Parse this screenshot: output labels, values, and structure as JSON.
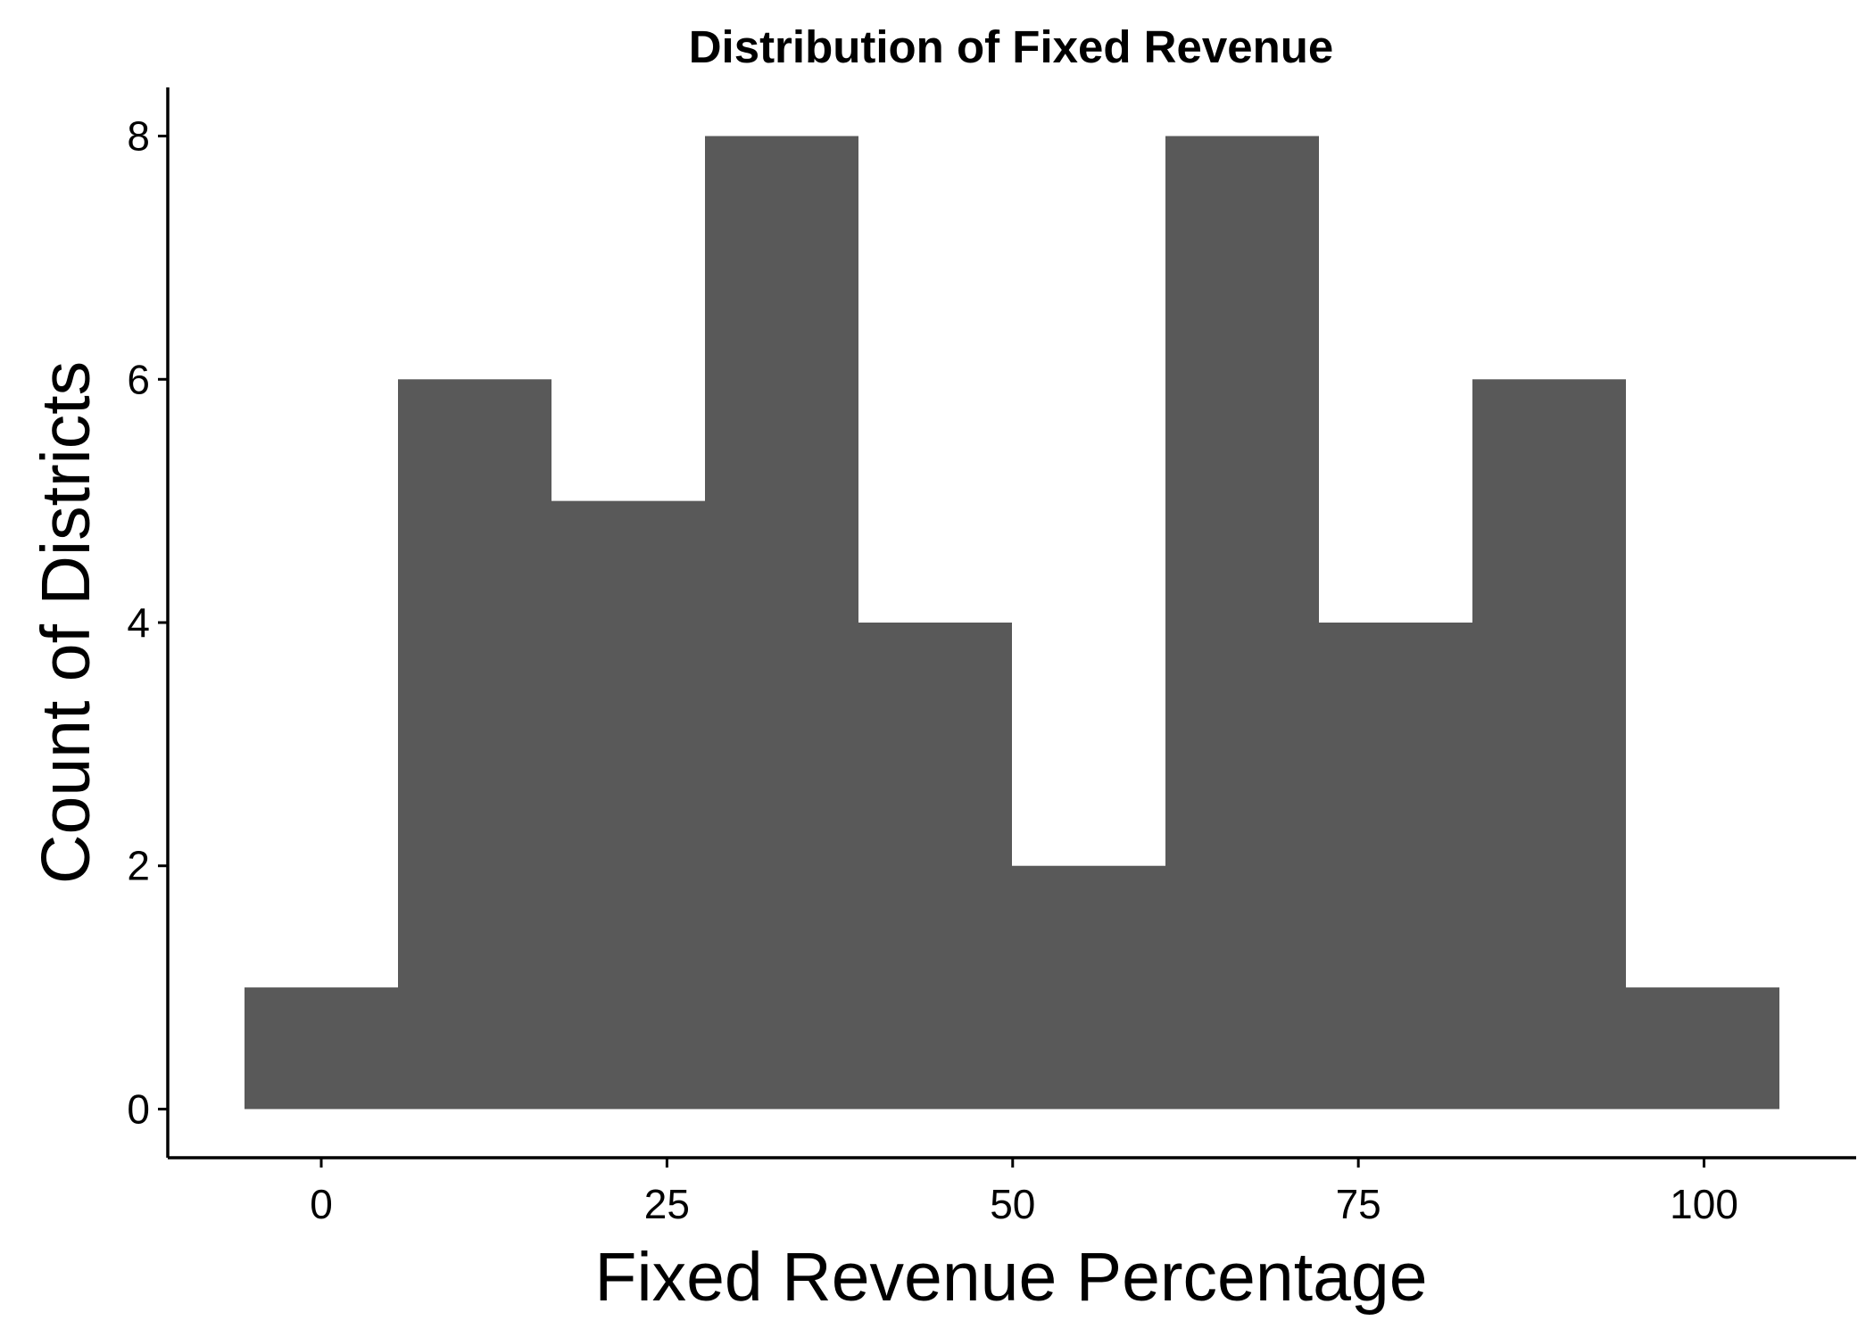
{
  "chart_data": {
    "type": "bar",
    "title": "Distribution of Fixed Revenue",
    "xlabel": "Fixed Revenue Percentage",
    "ylabel": "Count of Districts",
    "bins": [
      {
        "start": -5.55,
        "end": 5.55,
        "count": 1
      },
      {
        "start": 5.55,
        "end": 16.65,
        "count": 6
      },
      {
        "start": 16.65,
        "end": 27.75,
        "count": 5
      },
      {
        "start": 27.75,
        "end": 38.85,
        "count": 8
      },
      {
        "start": 38.85,
        "end": 49.95,
        "count": 4
      },
      {
        "start": 49.95,
        "end": 61.05,
        "count": 2
      },
      {
        "start": 61.05,
        "end": 72.15,
        "count": 8
      },
      {
        "start": 72.15,
        "end": 83.25,
        "count": 4
      },
      {
        "start": 83.25,
        "end": 94.35,
        "count": 6
      },
      {
        "start": 94.35,
        "end": 105.45,
        "count": 1
      }
    ],
    "xlim": [
      -11.1,
      111.0
    ],
    "ylim": [
      -0.4,
      8.4
    ],
    "xticks": [
      0,
      25,
      50,
      75,
      100
    ],
    "yticks": [
      0,
      2,
      4,
      6,
      8
    ],
    "bar_color": "#595959",
    "axis_color": "#000000",
    "grid": false,
    "legend": "none"
  }
}
